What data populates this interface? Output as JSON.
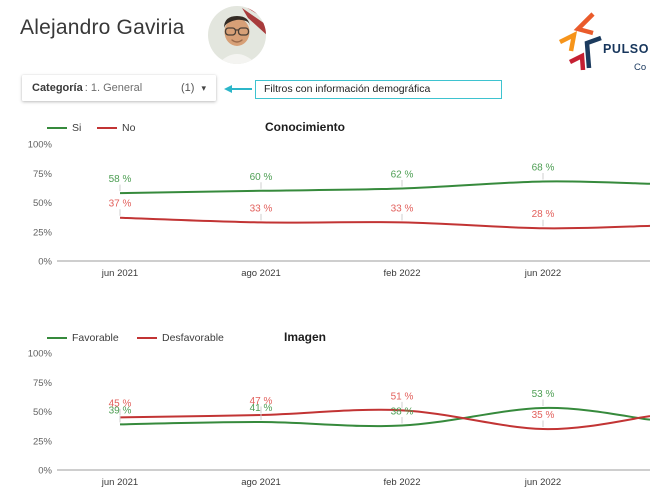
{
  "header": {
    "title": "Alejandro Gaviria",
    "logo": {
      "text": "PULSO",
      "subtext": "Co"
    }
  },
  "filters": {
    "category_label": "Categoría",
    "category_value": ": 1. General",
    "count": "(1)",
    "annotation": "Filtros con información demográfica"
  },
  "icons": {
    "dropdown_caret": "▾",
    "annotation_arrow": "arrow-left",
    "logo_mark": "star-chevrons",
    "avatar": "portrait-photo"
  },
  "colors": {
    "green_line": "#368a3c",
    "green_label": "#4d9e53",
    "red_line": "#c23434",
    "red_label": "#e2605c",
    "teal": "#2cb6c9",
    "navy": "#17365c",
    "axis": "#9e9e9e",
    "point_tick": "#cfcfcf",
    "ytick_text": "#616161",
    "xlabel_text": "#3a3a3a"
  },
  "chart_data": [
    {
      "type": "line",
      "title": "Conocimiento",
      "categories": [
        "jun 2021",
        "ago 2021",
        "feb 2022",
        "jun 2022"
      ],
      "series": [
        {
          "name": "Si",
          "color": "green",
          "values": [
            58,
            60,
            62,
            68
          ],
          "edge_value": 66
        },
        {
          "name": "No",
          "color": "red",
          "values": [
            37,
            33,
            33,
            28
          ],
          "edge_value": 30
        }
      ],
      "y_ticks": [
        "100%",
        "75%",
        "50%",
        "25%",
        "0%"
      ],
      "ylim": [
        0,
        100
      ],
      "label_suffix": " %",
      "legend_position": "top-left",
      "grid": false
    },
    {
      "type": "line",
      "title": "Imagen",
      "categories": [
        "jun 2021",
        "ago 2021",
        "feb 2022",
        "jun 2022"
      ],
      "series": [
        {
          "name": "Favorable",
          "color": "green",
          "values": [
            39,
            41,
            38,
            53
          ],
          "edge_value": 43
        },
        {
          "name": "Desfavorable",
          "color": "red",
          "values": [
            45,
            47,
            51,
            35
          ],
          "edge_value": 46
        }
      ],
      "y_ticks": [
        "100%",
        "75%",
        "50%",
        "25%",
        "0%"
      ],
      "ylim": [
        0,
        100
      ],
      "label_suffix": " %",
      "legend_position": "top-left",
      "grid": false
    }
  ]
}
